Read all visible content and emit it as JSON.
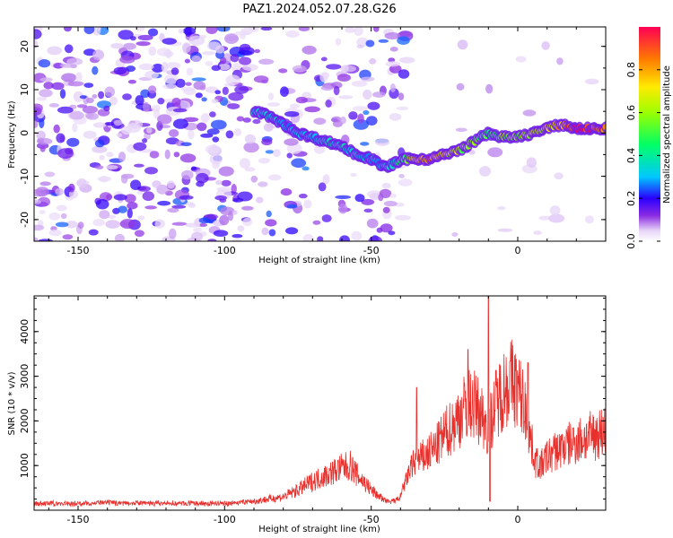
{
  "figure": {
    "title": "PAZ1.2024.052.07.28.G26"
  },
  "chart_data": [
    {
      "type": "heatmap",
      "panel": "top",
      "title": "PAZ1.2024.052.07.28.G26",
      "xlabel": "Height of straight line (km)",
      "ylabel": "Frequency (Hz)",
      "xlim": [
        -165,
        30
      ],
      "ylim": [
        -25,
        24.5
      ],
      "x_ticks": [
        -150,
        -100,
        -50,
        0
      ],
      "y_ticks": [
        -20,
        -10,
        0,
        10,
        20
      ],
      "tick_labels": {
        "x": [
          "-150",
          "-100",
          "-50",
          "0"
        ],
        "y": [
          "-20",
          "-10",
          "0",
          "10",
          "20"
        ]
      },
      "colorbar": {
        "label": "Normalized spectral amplitude",
        "range": [
          0,
          1
        ],
        "ticks": [
          0.0,
          0.2,
          0.4,
          0.6,
          0.8
        ],
        "tick_labels": [
          "0.0",
          "0.2",
          "0.4",
          "0.6",
          "0.8"
        ],
        "colormap": "rainbow"
      },
      "ridge": {
        "x": [
          -90,
          -85,
          -80,
          -75,
          -70,
          -65,
          -60,
          -55,
          -50,
          -45,
          -42,
          -38,
          -35,
          -30,
          -25,
          -20,
          -15,
          -10,
          -5,
          0,
          5,
          10,
          15,
          20,
          25,
          30
        ],
        "freq": [
          5,
          4,
          2,
          0,
          -1,
          -2,
          -3,
          -5,
          -6,
          -8,
          -7,
          -6,
          -6,
          -6,
          -5,
          -4,
          -2,
          0,
          -1,
          -1,
          0,
          1,
          2,
          1,
          1,
          1
        ],
        "amplitude": [
          0.3,
          0.35,
          0.3,
          0.3,
          0.3,
          0.35,
          0.35,
          0.35,
          0.3,
          0.3,
          0.35,
          0.5,
          0.7,
          0.9,
          0.7,
          0.6,
          0.55,
          0.45,
          0.55,
          0.55,
          0.6,
          0.7,
          0.75,
          0.95,
          0.95,
          0.9
        ]
      }
    },
    {
      "type": "line",
      "panel": "bottom",
      "xlabel": "Height of straight line (km)",
      "ylabel": "SNR (10 * v/v)",
      "xlim": [
        -165,
        30
      ],
      "ylim": [
        0,
        4800
      ],
      "x_ticks": [
        -150,
        -100,
        -50,
        0
      ],
      "y_ticks": [
        1000,
        2000,
        3000,
        4000
      ],
      "tick_labels": {
        "x": [
          "-150",
          "-100",
          "-50",
          "0"
        ],
        "y": [
          "1000",
          "2000",
          "3000",
          "4000"
        ]
      },
      "line_color": "#e8302c",
      "series": [
        {
          "x": [
            -165,
            -150,
            -140,
            -130,
            -120,
            -100,
            -90,
            -80,
            -75,
            -70,
            -65,
            -60,
            -57,
            -55,
            -52,
            -50,
            -47,
            -45,
            -42,
            -40,
            -38,
            -36,
            -34,
            -32,
            -30,
            -28,
            -25,
            -22,
            -20,
            -18,
            -16,
            -14,
            -12,
            -10,
            -8,
            -6,
            -4,
            -2,
            0,
            2,
            4,
            6,
            8,
            10,
            15,
            20,
            25,
            30
          ],
          "values": [
            150,
            150,
            170,
            160,
            150,
            150,
            200,
            300,
            450,
            650,
            800,
            950,
            1000,
            800,
            600,
            450,
            300,
            200,
            200,
            300,
            700,
            1000,
            1100,
            1200,
            1300,
            1400,
            1700,
            1900,
            2100,
            2300,
            2400,
            2300,
            2100,
            1800,
            2300,
            2600,
            2800,
            2900,
            2700,
            2400,
            1700,
            1100,
            1000,
            1200,
            1400,
            1550,
            1650,
            1800
          ]
        }
      ],
      "spikes": [
        {
          "x": -34.5,
          "value": 2750
        },
        {
          "x": -17,
          "value": 3600
        },
        {
          "x": -10,
          "value": 4800
        },
        {
          "x": -9.5,
          "value": 200
        },
        {
          "x": 3.5,
          "value": 3300
        }
      ]
    }
  ]
}
